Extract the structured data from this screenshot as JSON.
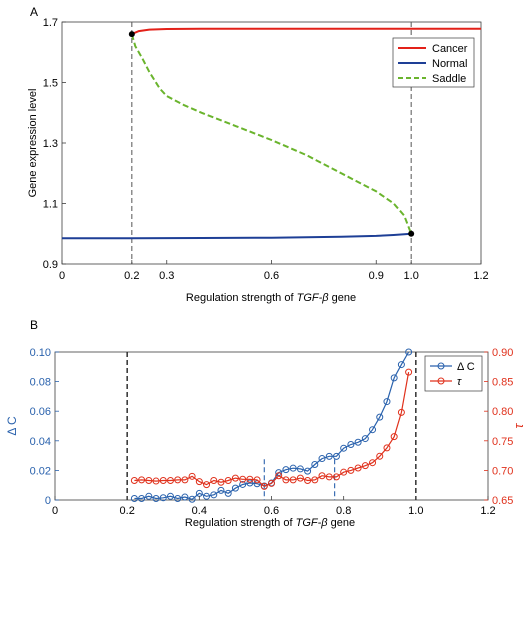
{
  "chart_data": [
    {
      "panel_label": "A",
      "type": "line",
      "xlabel_prefix": "Regulation strength of ",
      "xlabel_italic": "TGF-β",
      "xlabel_suffix": " gene",
      "ylabel": "Gene expression level",
      "xlim": [
        0,
        1.2
      ],
      "ylim": [
        0.9,
        1.7
      ],
      "xticks": [
        0,
        0.2,
        0.3,
        0.6,
        0.9,
        1.0,
        1.2
      ],
      "xtick_labels": [
        "0",
        "0.2",
        "0.3",
        "0.6",
        "0.9",
        "1.0",
        "1.2"
      ],
      "yticks": [
        0.9,
        1.1,
        1.3,
        1.5,
        1.7
      ],
      "ytick_labels": [
        "0.9",
        "1.1",
        "1.3",
        "1.5",
        "1.7"
      ],
      "legend_position": "top-right",
      "series": [
        {
          "name": "Cancer",
          "color": "#e32119",
          "dash": "solid",
          "x": [
            0.2,
            0.22,
            0.25,
            0.3,
            0.4,
            0.6,
            0.8,
            1.0,
            1.2
          ],
          "y": [
            1.66,
            1.67,
            1.675,
            1.677,
            1.678,
            1.678,
            1.678,
            1.678,
            1.678
          ]
        },
        {
          "name": "Normal",
          "color": "#1e3f96",
          "dash": "solid",
          "x": [
            0,
            0.2,
            0.4,
            0.6,
            0.8,
            0.9,
            0.95,
            1.0
          ],
          "y": [
            0.985,
            0.985,
            0.986,
            0.987,
            0.99,
            0.993,
            0.996,
            1.0
          ]
        },
        {
          "name": "Saddle",
          "color": "#6ab42d",
          "dash": "dashed",
          "x": [
            0.2,
            0.21,
            0.23,
            0.25,
            0.28,
            0.3,
            0.35,
            0.4,
            0.5,
            0.6,
            0.7,
            0.8,
            0.9,
            0.95,
            0.98,
            1.0
          ],
          "y": [
            1.66,
            1.62,
            1.58,
            1.535,
            1.48,
            1.455,
            1.425,
            1.4,
            1.355,
            1.31,
            1.26,
            1.2,
            1.14,
            1.1,
            1.06,
            1.0
          ]
        }
      ],
      "bifurcation_points": [
        {
          "x": 0.2,
          "y": 1.66
        },
        {
          "x": 1.0,
          "y": 1.0
        }
      ],
      "vlines": [
        0.2,
        1.0
      ]
    },
    {
      "panel_label": "B",
      "type": "line",
      "xlabel_prefix": "Regulation strength of ",
      "xlabel_italic": "TGF-β",
      "xlabel_suffix": " gene",
      "ylabel_left": "Δ C",
      "ylabel_right": "τ",
      "xlim": [
        0,
        1.2
      ],
      "ylim_left": [
        0,
        0.1
      ],
      "ylim_right": [
        0.65,
        0.9
      ],
      "xticks": [
        0,
        0.2,
        0.4,
        0.6,
        0.8,
        1.0,
        1.2
      ],
      "xtick_labels": [
        "0",
        "0.2",
        "0.4",
        "0.6",
        "0.8",
        "1.0",
        "1.2"
      ],
      "yticks_left": [
        0,
        0.02,
        0.04,
        0.06,
        0.08,
        0.1
      ],
      "ytick_labels_left": [
        "0",
        "0.02",
        "0.04",
        "0.06",
        "0.08",
        "0.10"
      ],
      "yticks_right": [
        0.65,
        0.7,
        0.75,
        0.8,
        0.85,
        0.9
      ],
      "ytick_labels_right": [
        "0.65",
        "0.70",
        "0.75",
        "0.80",
        "0.85",
        "0.90"
      ],
      "legend_position": "top-right",
      "series": [
        {
          "name": "Δ C",
          "color": "#2a62ad",
          "axis": "left",
          "x": [
            0.22,
            0.24,
            0.26,
            0.28,
            0.3,
            0.32,
            0.34,
            0.36,
            0.38,
            0.4,
            0.42,
            0.44,
            0.46,
            0.48,
            0.5,
            0.52,
            0.54,
            0.56,
            0.58,
            0.6,
            0.62,
            0.64,
            0.66,
            0.68,
            0.7,
            0.72,
            0.74,
            0.76,
            0.78,
            0.8,
            0.82,
            0.84,
            0.86,
            0.88,
            0.9,
            0.92,
            0.94,
            0.96,
            0.98
          ],
          "y": [
            0.001,
            0.001,
            0.0025,
            0.001,
            0.0015,
            0.0025,
            0.001,
            0.002,
            0.0005,
            0.0045,
            0.0025,
            0.0035,
            0.0065,
            0.0045,
            0.008,
            0.0105,
            0.0115,
            0.011,
            0.0095,
            0.0115,
            0.0185,
            0.0205,
            0.0215,
            0.021,
            0.0195,
            0.024,
            0.028,
            0.0295,
            0.0295,
            0.035,
            0.0375,
            0.039,
            0.0415,
            0.0475,
            0.056,
            0.0665,
            0.0825,
            0.0915,
            0.1
          ]
        },
        {
          "name": "τ",
          "color": "#e0311c",
          "axis": "right",
          "x": [
            0.22,
            0.24,
            0.26,
            0.28,
            0.3,
            0.32,
            0.34,
            0.36,
            0.38,
            0.4,
            0.42,
            0.44,
            0.46,
            0.48,
            0.5,
            0.52,
            0.54,
            0.56,
            0.58,
            0.6,
            0.62,
            0.64,
            0.66,
            0.68,
            0.7,
            0.72,
            0.74,
            0.76,
            0.78,
            0.8,
            0.82,
            0.84,
            0.86,
            0.88,
            0.9,
            0.92,
            0.94,
            0.96,
            0.98
          ],
          "y": [
            0.683,
            0.684,
            0.683,
            0.682,
            0.683,
            0.683,
            0.684,
            0.684,
            0.69,
            0.681,
            0.676,
            0.683,
            0.68,
            0.683,
            0.687,
            0.685,
            0.685,
            0.684,
            0.673,
            0.678,
            0.691,
            0.684,
            0.684,
            0.687,
            0.683,
            0.684,
            0.691,
            0.689,
            0.689,
            0.697,
            0.7,
            0.704,
            0.708,
            0.713,
            0.724,
            0.738,
            0.757,
            0.798,
            0.866
          ]
        }
      ],
      "vlines_black": [
        0.2,
        1.0
      ],
      "vlines_blue": [
        0.58,
        0.775
      ]
    }
  ]
}
